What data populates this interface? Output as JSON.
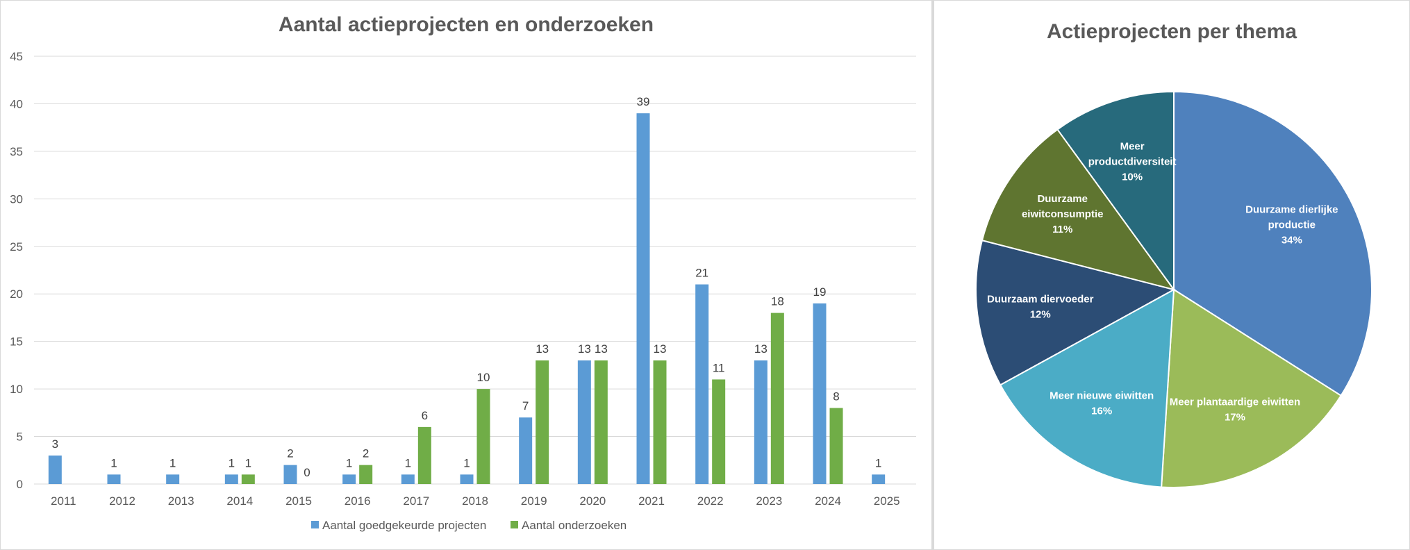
{
  "chart_data": [
    {
      "type": "bar",
      "title": "Aantal actieprojecten en onderzoeken",
      "categories": [
        "2011",
        "2012",
        "2013",
        "2014",
        "2015",
        "2016",
        "2017",
        "2018",
        "2019",
        "2020",
        "2021",
        "2022",
        "2023",
        "2024",
        "2025"
      ],
      "series": [
        {
          "name": "Aantal goedgekeurde projecten",
          "color": "#5b9bd5",
          "values": [
            3,
            1,
            1,
            1,
            2,
            1,
            1,
            1,
            7,
            13,
            39,
            21,
            13,
            19,
            1
          ]
        },
        {
          "name": "Aantal onderzoeken",
          "color": "#70ad47",
          "values": [
            null,
            null,
            null,
            1,
            0,
            2,
            6,
            10,
            13,
            13,
            13,
            11,
            18,
            8,
            null
          ]
        }
      ],
      "ylim": [
        0,
        45
      ],
      "yticks": [
        0,
        5,
        10,
        15,
        20,
        25,
        30,
        35,
        40,
        45
      ],
      "grid": true,
      "legend": "bottom"
    },
    {
      "type": "pie",
      "title": "Actieprojecten per thema",
      "slices": [
        {
          "label": [
            "Duurzame dierlijke",
            "productie"
          ],
          "percent": "34%",
          "value": 34,
          "color": "#4f81bd"
        },
        {
          "label": [
            "Meer plantaardige eiwitten"
          ],
          "percent": "17%",
          "value": 17,
          "color": "#9bbb59"
        },
        {
          "label": [
            "Meer nieuwe eiwitten"
          ],
          "percent": "16%",
          "value": 16,
          "color": "#4bacc6"
        },
        {
          "label": [
            "Duurzaam diervoeder"
          ],
          "percent": "12%",
          "value": 12,
          "color": "#2c4d75"
        },
        {
          "label": [
            "Duurzame",
            "eiwitconsumptie"
          ],
          "percent": "11%",
          "value": 11,
          "color": "#5f7530"
        },
        {
          "label": [
            "Meer",
            "productdiversiteit"
          ],
          "percent": "10%",
          "value": 10,
          "color": "#276a7c"
        }
      ]
    }
  ]
}
